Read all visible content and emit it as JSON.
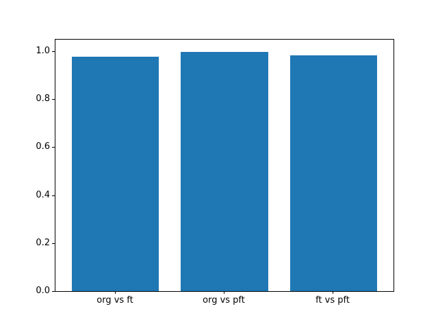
{
  "chart_data": {
    "type": "bar",
    "title": "",
    "xlabel": "",
    "ylabel": "",
    "categories": [
      "org vs ft",
      "org vs pft",
      "ft vs pft"
    ],
    "values": [
      0.978,
      0.996,
      0.983
    ],
    "bar_color": "#1f77b4",
    "bar_width": 0.8,
    "xlim": [
      -0.55,
      2.55
    ],
    "ylim": [
      0,
      1.048
    ],
    "yticks": [
      0.0,
      0.2,
      0.4,
      0.6,
      0.8,
      1.0
    ],
    "ytick_labels": [
      "0.0",
      "0.2",
      "0.4",
      "0.6",
      "0.8",
      "1.0"
    ],
    "grid": false,
    "legend": "none",
    "background_color": "#ffffff",
    "spine_color": "#000000",
    "tick_label_color": "#000000"
  }
}
